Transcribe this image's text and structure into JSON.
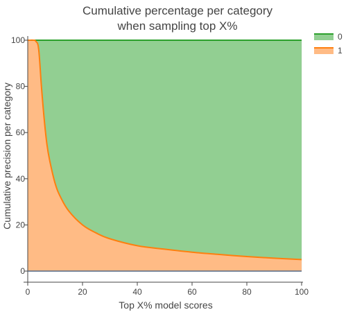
{
  "chart_data": {
    "type": "area",
    "title_line1": "Cumulative percentage per category",
    "title_line2": "when sampling top X%",
    "xlabel": "Top X% model scores",
    "ylabel": "Cumulative precision per category",
    "xlim": [
      0,
      100
    ],
    "ylim": [
      0,
      100
    ],
    "x_ticks": [
      "0",
      "20",
      "40",
      "60",
      "80",
      "100"
    ],
    "y_ticks": [
      "0",
      "20",
      "40",
      "60",
      "80",
      "100"
    ],
    "grid": true,
    "stacked": true,
    "legend_position": "top-right",
    "x": [
      0,
      1,
      2,
      3,
      4,
      5,
      6,
      7,
      8,
      10,
      12,
      15,
      20,
      25,
      30,
      40,
      50,
      60,
      70,
      80,
      90,
      100
    ],
    "series": [
      {
        "name": "1",
        "color": "#ff7f0e",
        "fill": "#ffbb85",
        "values": [
          100,
          100,
          100,
          99.5,
          96,
          80,
          66,
          55,
          48,
          38,
          32,
          26,
          20,
          16.5,
          14,
          11,
          9.5,
          8.2,
          7.2,
          6.3,
          5.6,
          5
        ]
      },
      {
        "name": "0",
        "color": "#2ca02c",
        "fill": "#92cf92",
        "values": [
          0,
          0,
          0,
          0.5,
          4,
          20,
          34,
          45,
          52,
          62,
          68,
          74,
          80,
          83.5,
          86,
          89,
          90.5,
          91.8,
          92.8,
          93.7,
          94.4,
          95
        ]
      }
    ]
  }
}
